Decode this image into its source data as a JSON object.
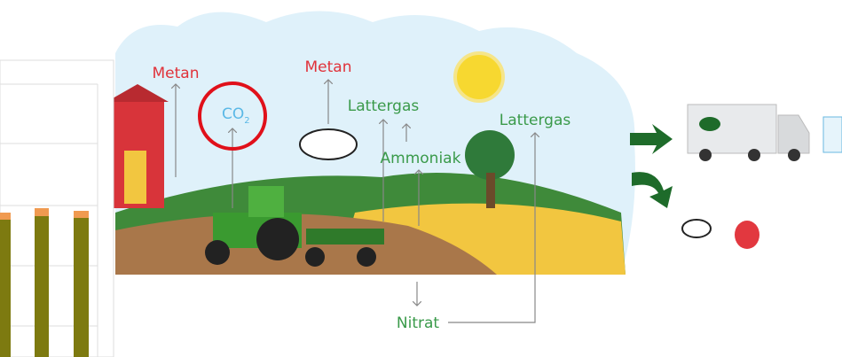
{
  "labels": {
    "metan_left": "Metan",
    "metan_right": "Metan",
    "co2": {
      "main": "CO",
      "sub": "2"
    },
    "lattergas_left": "Lattergas",
    "ammoniak": "Ammoniak",
    "lattergas_right": "Lattergas",
    "nitrat": "Nitrat"
  }
}
